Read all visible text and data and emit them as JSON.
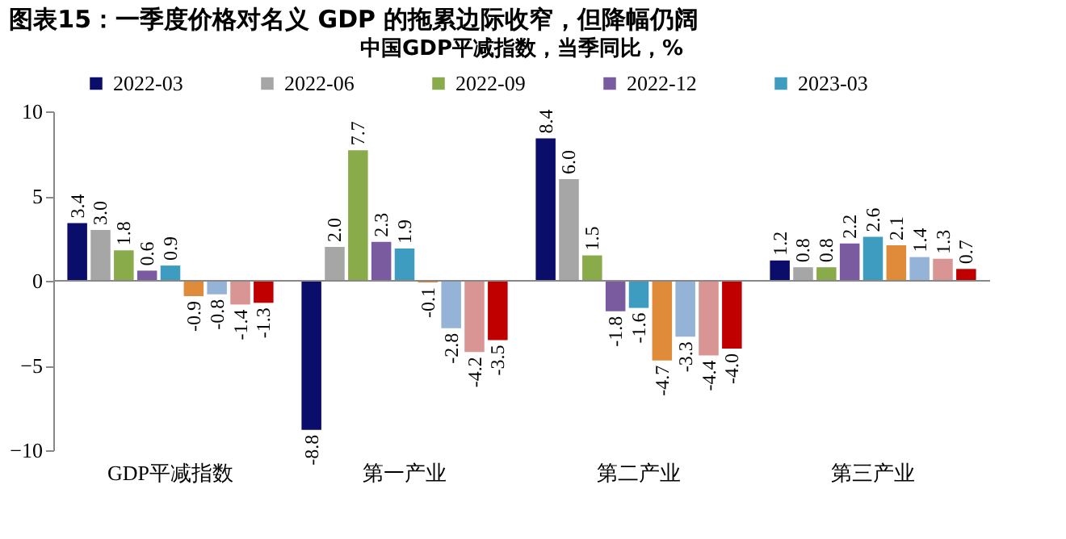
{
  "chart_data": {
    "type": "bar",
    "title": "图表15：一季度价格对名义 GDP 的拖累边际收窄，但降幅仍阔",
    "subtitle": "中国GDP平减指数，当季同比，%",
    "categories": [
      "GDP平减指数",
      "第一产业",
      "第二产业",
      "第三产业"
    ],
    "series": [
      {
        "name": "2022-03",
        "color": "#0b0d6b",
        "values": [
          3.4,
          -8.8,
          8.4,
          1.2
        ],
        "value_labels": [
          "3.4",
          "-8.8",
          "8.4",
          "1.2"
        ]
      },
      {
        "name": "2022-06",
        "color": "#a6a6a6",
        "values": [
          3.0,
          2.0,
          6.0,
          0.8
        ],
        "value_labels": [
          "3.0",
          "2.0",
          "6.0",
          "0.8"
        ]
      },
      {
        "name": "2022-09",
        "color": "#8aab4a",
        "values": [
          1.8,
          7.7,
          1.5,
          0.8
        ],
        "value_labels": [
          "1.8",
          "7.7",
          "1.5",
          "0.8"
        ]
      },
      {
        "name": "2022-12",
        "color": "#7a5ba0",
        "values": [
          0.6,
          2.3,
          -1.8,
          2.2
        ],
        "value_labels": [
          "0.6",
          "2.3",
          "-1.8",
          "2.2"
        ]
      },
      {
        "name": "2023-03",
        "color": "#3d9cc0",
        "values": [
          0.9,
          1.9,
          -1.6,
          2.6
        ],
        "value_labels": [
          "0.9",
          "1.9",
          "-1.6",
          "2.6"
        ]
      },
      {
        "color": "#e08b3a",
        "values": [
          -0.9,
          -0.1,
          -4.7,
          2.1
        ],
        "value_labels": [
          "-0.9",
          "-0.1",
          "-4.7",
          "2.1"
        ]
      },
      {
        "color": "#95b3d7",
        "values": [
          -0.8,
          -2.8,
          -3.3,
          1.4
        ],
        "value_labels": [
          "-0.8",
          "-2.8",
          "-3.3",
          "1.4"
        ]
      },
      {
        "color": "#d99594",
        "values": [
          -1.4,
          -4.2,
          -4.4,
          1.3
        ],
        "value_labels": [
          "-1.4",
          "-4.2",
          "-4.4",
          "1.3"
        ]
      },
      {
        "color": "#c00000",
        "values": [
          -1.3,
          -3.5,
          -4.0,
          0.7
        ],
        "value_labels": [
          "-1.3",
          "-3.5",
          "-4.0",
          "0.7"
        ]
      }
    ],
    "ylim": [
      -10,
      10
    ],
    "yticks": [
      -10,
      -5,
      0,
      5,
      10
    ],
    "legend": "top"
  }
}
